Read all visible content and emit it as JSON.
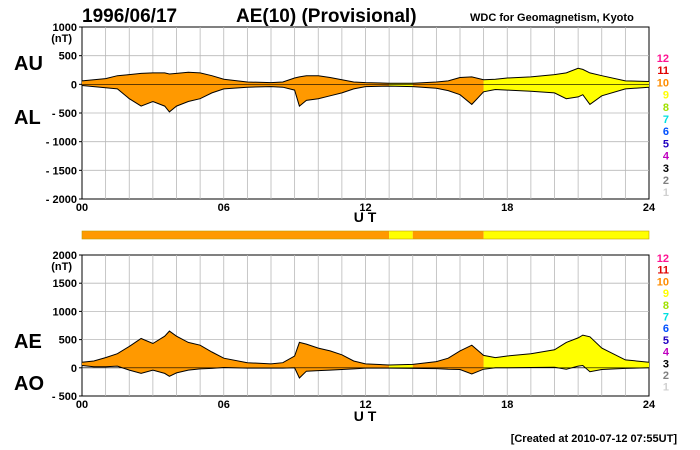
{
  "header": {
    "date": "1996/06/17",
    "title": "AE(10) (Provisional)",
    "source": "WDC for Geomagnetism, Kyoto"
  },
  "footer": {
    "created": "[Created at 2010-07-12 07:55UT]"
  },
  "level_scale": {
    "labels": [
      "12",
      "11",
      "10",
      "9",
      "8",
      "7",
      "6",
      "5",
      "4",
      "3",
      "2",
      "1"
    ],
    "colors": [
      "#ff1493",
      "#e00000",
      "#ff8c00",
      "#ffff00",
      "#a0e000",
      "#00e0e0",
      "#0050ff",
      "#2000c0",
      "#c000c0",
      "#000000",
      "#808080",
      "#d0d0d0"
    ]
  },
  "colors": {
    "orange": "#ff9900",
    "yellow": "#ffff00",
    "grid": "#b8b8b8",
    "curve": "#000000"
  },
  "chart_data": [
    {
      "type": "area",
      "panel": "AU/AL",
      "series": [
        {
          "name": "AU"
        },
        {
          "name": "AL"
        }
      ],
      "label_top": "AU",
      "label_bottom": "AL",
      "unit": "(nT)",
      "ylim": [
        -2000,
        1000
      ],
      "yticks": [
        "1000",
        "500",
        "0",
        "- 500",
        "- 1000",
        "- 1500",
        "- 2000"
      ],
      "yticks_values": [
        1000,
        500,
        0,
        -500,
        -1000,
        -1500,
        -2000
      ],
      "xlabel": "U T",
      "xlim": [
        0,
        24
      ],
      "xticks": [
        "00",
        "06",
        "12",
        "18",
        "24"
      ],
      "xticks_values": [
        0,
        6,
        12,
        18,
        24
      ],
      "x": [
        0,
        0.5,
        1,
        1.5,
        2,
        2.5,
        3,
        3.5,
        3.7,
        4,
        4.5,
        5,
        5.5,
        6,
        7,
        8,
        8.5,
        9,
        9.2,
        9.5,
        10,
        10.5,
        11,
        11.5,
        12,
        13,
        14,
        15,
        15.5,
        16,
        16.5,
        17,
        17.5,
        18,
        19,
        20,
        20.5,
        21,
        21.2,
        21.5,
        22,
        23,
        24
      ],
      "upper": [
        60,
        80,
        100,
        150,
        170,
        190,
        200,
        200,
        180,
        190,
        210,
        200,
        150,
        90,
        40,
        30,
        40,
        110,
        130,
        150,
        150,
        120,
        80,
        40,
        30,
        20,
        20,
        40,
        60,
        120,
        130,
        80,
        90,
        110,
        130,
        170,
        200,
        280,
        260,
        200,
        150,
        60,
        50
      ],
      "lower": [
        -20,
        -40,
        -60,
        -80,
        -250,
        -380,
        -300,
        -380,
        -480,
        -380,
        -300,
        -250,
        -150,
        -80,
        -50,
        -40,
        -50,
        -100,
        -380,
        -280,
        -250,
        -200,
        -150,
        -80,
        -40,
        -30,
        -40,
        -70,
        -110,
        -180,
        -350,
        -130,
        -90,
        -100,
        -120,
        -150,
        -250,
        -220,
        -180,
        -350,
        -200,
        -80,
        -50
      ],
      "color_segments": [
        {
          "from": 0,
          "to": 13,
          "level": "10"
        },
        {
          "from": 13,
          "to": 14,
          "level": "9"
        },
        {
          "from": 14,
          "to": 17,
          "level": "10"
        },
        {
          "from": 17,
          "to": 24,
          "level": "9"
        }
      ],
      "grid": true
    },
    {
      "type": "area",
      "panel": "AE/AO",
      "series": [
        {
          "name": "AE"
        },
        {
          "name": "AO"
        }
      ],
      "label_top": "AE",
      "label_bottom": "AO",
      "unit": "(nT)",
      "ylim": [
        -500,
        2000
      ],
      "yticks": [
        "2000",
        "1500",
        "1000",
        "500",
        "0",
        "- 500"
      ],
      "yticks_values": [
        2000,
        1500,
        1000,
        500,
        0,
        -500
      ],
      "xlabel": "U T",
      "xlim": [
        0,
        24
      ],
      "xticks": [
        "00",
        "06",
        "12",
        "18",
        "24"
      ],
      "xticks_values": [
        0,
        6,
        12,
        18,
        24
      ],
      "x": [
        0,
        0.5,
        1,
        1.5,
        2,
        2.5,
        3,
        3.5,
        3.7,
        4,
        4.5,
        5,
        5.5,
        6,
        7,
        8,
        8.5,
        9,
        9.2,
        9.5,
        10,
        10.5,
        11,
        11.5,
        12,
        13,
        14,
        15,
        15.5,
        16,
        16.5,
        17,
        17.5,
        18,
        19,
        20,
        20.5,
        21,
        21.2,
        21.5,
        22,
        23,
        24
      ],
      "upper": [
        100,
        120,
        180,
        250,
        380,
        520,
        430,
        560,
        650,
        560,
        450,
        400,
        280,
        170,
        90,
        70,
        90,
        210,
        450,
        420,
        350,
        300,
        230,
        120,
        70,
        50,
        60,
        110,
        170,
        300,
        400,
        220,
        180,
        210,
        250,
        320,
        450,
        530,
        580,
        550,
        350,
        140,
        100
      ],
      "lower": [
        40,
        20,
        20,
        30,
        -40,
        -100,
        -40,
        -100,
        -150,
        -90,
        -40,
        -20,
        -10,
        5,
        -5,
        -5,
        -5,
        0,
        -180,
        -60,
        -50,
        -40,
        -30,
        -20,
        -5,
        -5,
        -10,
        -15,
        -25,
        -30,
        -110,
        -25,
        0,
        0,
        5,
        10,
        -25,
        30,
        40,
        -70,
        -30,
        -10,
        0
      ]
    }
  ],
  "ratio_bar": {
    "segments": [
      {
        "from": 0,
        "to": 13,
        "level": "10"
      },
      {
        "from": 13,
        "to": 14,
        "level": "9"
      },
      {
        "from": 14,
        "to": 17,
        "level": "10"
      },
      {
        "from": 17,
        "to": 24,
        "level": "9"
      }
    ]
  }
}
